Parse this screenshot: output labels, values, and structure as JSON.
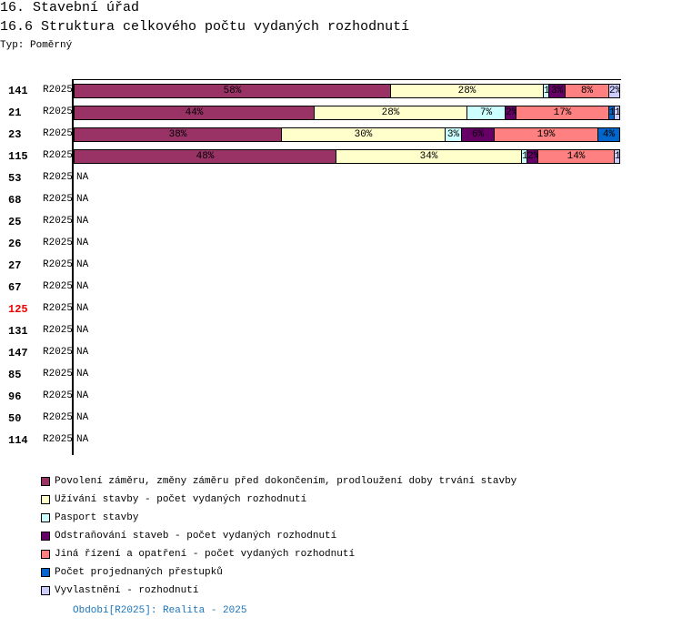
{
  "header": {
    "title": "16. Stavební úřad",
    "subtitle": "16.6 Struktura celkového počtu vydaných rozhodnutí",
    "type": "Typ: Poměrný"
  },
  "chart_data": {
    "type": "bar",
    "orientation": "horizontal",
    "stacked": "percent",
    "legend_position": "bottom",
    "series": [
      {
        "name": "Povolení záměru,  změny záměru před dokončením, prodloužení doby trvání stavby",
        "color": "#993366"
      },
      {
        "name": "Užívání stavby - počet vydaných rozhodnutí",
        "color": "#ffffcc"
      },
      {
        "name": "Pasport stavby",
        "color": "#ccffff"
      },
      {
        "name": "Odstraňování staveb - počet vydaných rozhodnutí",
        "color": "#660066"
      },
      {
        "name": "Jiná řízení a opatření - počet vydaných rozhodnutí",
        "color": "#ff8080"
      },
      {
        "name": "Počet projednaných přestupků",
        "color": "#0066cc"
      },
      {
        "name": "Vyvlastnění - rozhodnutí",
        "color": "#ccccff"
      }
    ],
    "rows": [
      {
        "id": "141",
        "period": "R2025",
        "values": [
          58,
          28,
          1,
          3,
          8,
          0,
          2
        ]
      },
      {
        "id": "21",
        "period": "R2025",
        "values": [
          44,
          28,
          7,
          2,
          17,
          1,
          1
        ]
      },
      {
        "id": "23",
        "period": "R2025",
        "values": [
          38,
          30,
          3,
          6,
          19,
          4,
          0
        ]
      },
      {
        "id": "115",
        "period": "R2025",
        "values": [
          48,
          34,
          1,
          2,
          14,
          0,
          1
        ]
      },
      {
        "id": "53",
        "period": "R2025",
        "na": "NA"
      },
      {
        "id": "68",
        "period": "R2025",
        "na": "NA"
      },
      {
        "id": "25",
        "period": "R2025",
        "na": "NA"
      },
      {
        "id": "26",
        "period": "R2025",
        "na": "NA"
      },
      {
        "id": "27",
        "period": "R2025",
        "na": "NA"
      },
      {
        "id": "67",
        "period": "R2025",
        "na": "NA"
      },
      {
        "id": "125",
        "period": "R2025",
        "na": "NA",
        "highlight": "#e00000"
      },
      {
        "id": "131",
        "period": "R2025",
        "na": "NA"
      },
      {
        "id": "147",
        "period": "R2025",
        "na": "NA"
      },
      {
        "id": "85",
        "period": "R2025",
        "na": "NA"
      },
      {
        "id": "96",
        "period": "R2025",
        "na": "NA"
      },
      {
        "id": "50",
        "period": "R2025",
        "na": "NA"
      },
      {
        "id": "114",
        "period": "R2025",
        "na": "NA"
      }
    ],
    "footer": "Období[R2025]: Realita - 2025"
  }
}
